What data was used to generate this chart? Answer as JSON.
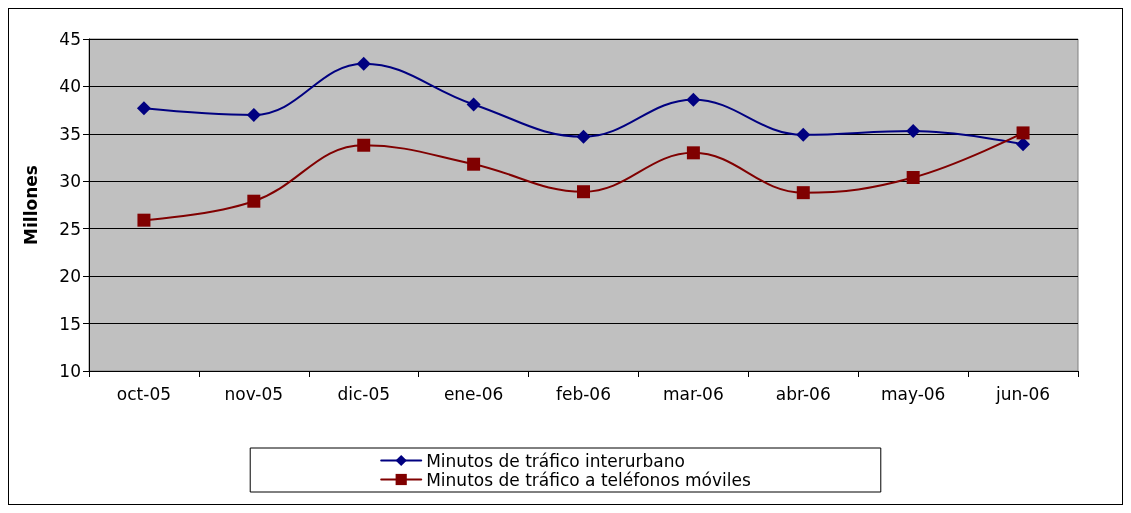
{
  "chart_data": {
    "type": "line",
    "ylabel": "Millones",
    "categories": [
      "oct-05",
      "nov-05",
      "dic-05",
      "ene-06",
      "feb-06",
      "mar-06",
      "abr-06",
      "may-06",
      "jun-06"
    ],
    "series": [
      {
        "name": "Minutos de tráfico interurbano",
        "color": "#000080",
        "marker": "diamond",
        "values": [
          37.7,
          37.0,
          42.4,
          38.1,
          34.7,
          38.6,
          34.9,
          35.3,
          33.9
        ]
      },
      {
        "name": "Minutos de tráfico a teléfonos móviles",
        "color": "#800000",
        "marker": "square",
        "values": [
          25.9,
          27.9,
          33.8,
          31.8,
          28.9,
          33.0,
          28.8,
          30.4,
          35.1
        ]
      }
    ],
    "ylim": [
      10,
      45
    ],
    "yticks": [
      10,
      15,
      20,
      25,
      30,
      35,
      40,
      45
    ],
    "grid": "y",
    "legend": "bottom",
    "line_style": "solid"
  }
}
